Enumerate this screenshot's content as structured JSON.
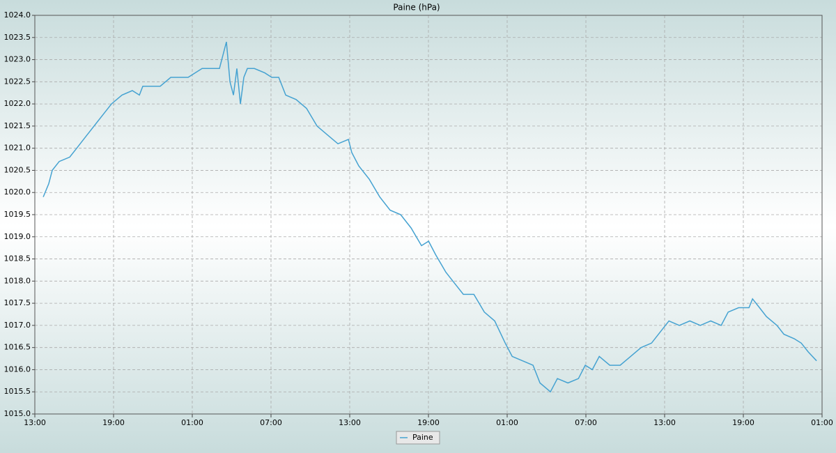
{
  "chart_data": {
    "type": "line",
    "title": "Paine (hPa)",
    "x": [
      0.64,
      1.06,
      1.33,
      1.86,
      2.66,
      3.19,
      3.98,
      4.78,
      5.31,
      5.84,
      6.64,
      7.43,
      7.97,
      8.23,
      9.56,
      10.36,
      11.68,
      12.75,
      14.07,
      14.6,
      14.87,
      15.14,
      15.4,
      15.67,
      15.93,
      16.2,
      16.73,
      17.53,
      18.06,
      18.59,
      19.12,
      19.91,
      20.71,
      21.51,
      22.3,
      23.1,
      23.9,
      24.16,
      24.69,
      25.49,
      26.29,
      27.08,
      27.88,
      28.68,
      29.47,
      30.01,
      30.54,
      31.33,
      31.86,
      32.66,
      33.46,
      34.26,
      35.05,
      35.85,
      36.38,
      37.17,
      37.97,
      38.5,
      39.3,
      39.83,
      40.63,
      41.43,
      41.95,
      42.49,
      43.02,
      43.82,
      44.61,
      45.41,
      46.21,
      47.0,
      47.8,
      48.33,
      49.12,
      49.92,
      50.72,
      51.51,
      52.31,
      52.84,
      53.64,
      54.43,
      54.7,
      55.23,
      55.76,
      56.56,
      57.09,
      57.88,
      58.41,
      58.95,
      59.58
    ],
    "series": [
      {
        "name": "Paine",
        "color": "#45a2d1",
        "values": [
          1019.9,
          1020.2,
          1020.5,
          1020.7,
          1020.8,
          1021.0,
          1021.3,
          1021.6,
          1021.8,
          1022.0,
          1022.2,
          1022.3,
          1022.2,
          1022.4,
          1022.4,
          1022.6,
          1022.6,
          1022.8,
          1022.8,
          1023.4,
          1022.5,
          1022.2,
          1022.8,
          1022.0,
          1022.6,
          1022.8,
          1022.8,
          1022.7,
          1022.6,
          1022.6,
          1022.2,
          1022.1,
          1021.9,
          1021.5,
          1021.3,
          1021.1,
          1021.2,
          1020.9,
          1020.6,
          1020.3,
          1019.9,
          1019.6,
          1019.5,
          1019.2,
          1018.8,
          1018.9,
          1018.6,
          1018.2,
          1018.0,
          1017.7,
          1017.7,
          1017.3,
          1017.1,
          1016.6,
          1016.3,
          1016.2,
          1016.1,
          1015.7,
          1015.5,
          1015.8,
          1015.7,
          1015.8,
          1016.1,
          1016.0,
          1016.3,
          1016.1,
          1016.1,
          1016.3,
          1016.5,
          1016.6,
          1016.9,
          1017.1,
          1017.0,
          1017.1,
          1017.0,
          1017.1,
          1017.0,
          1017.3,
          1017.4,
          1017.4,
          1017.6,
          1017.4,
          1017.2,
          1017.0,
          1016.8,
          1016.7,
          1016.6,
          1016.4,
          1016.2
        ]
      }
    ],
    "xlim": [
      0,
      60
    ],
    "xticks": [
      {
        "value": 0,
        "label": "13:00"
      },
      {
        "value": 6,
        "label": "19:00"
      },
      {
        "value": 12,
        "label": "01:00"
      },
      {
        "value": 18,
        "label": "07:00"
      },
      {
        "value": 24,
        "label": "13:00"
      },
      {
        "value": 30,
        "label": "19:00"
      },
      {
        "value": 36,
        "label": "01:00"
      },
      {
        "value": 42,
        "label": "07:00"
      },
      {
        "value": 48,
        "label": "13:00"
      },
      {
        "value": 54,
        "label": "19:00"
      },
      {
        "value": 60,
        "label": "01:00"
      }
    ],
    "ylim": [
      1015,
      1024
    ],
    "yticks": [
      {
        "value": 1015,
        "label": "1015.0"
      },
      {
        "value": 1015.5,
        "label": "1015.5"
      },
      {
        "value": 1016,
        "label": "1016.0"
      },
      {
        "value": 1016.5,
        "label": "1016.5"
      },
      {
        "value": 1017,
        "label": "1017.0"
      },
      {
        "value": 1017.5,
        "label": "1017.5"
      },
      {
        "value": 1018,
        "label": "1018.0"
      },
      {
        "value": 1018.5,
        "label": "1018.5"
      },
      {
        "value": 1019,
        "label": "1019.0"
      },
      {
        "value": 1019.5,
        "label": "1019.5"
      },
      {
        "value": 1020,
        "label": "1020.0"
      },
      {
        "value": 1020.5,
        "label": "1020.5"
      },
      {
        "value": 1021,
        "label": "1021.0"
      },
      {
        "value": 1021.5,
        "label": "1021.5"
      },
      {
        "value": 1022,
        "label": "1022.0"
      },
      {
        "value": 1022.5,
        "label": "1022.5"
      },
      {
        "value": 1023,
        "label": "1023.0"
      },
      {
        "value": 1023.5,
        "label": "1023.5"
      },
      {
        "value": 1024,
        "label": "1024.0"
      }
    ],
    "grid": true,
    "legend": "bottom"
  }
}
